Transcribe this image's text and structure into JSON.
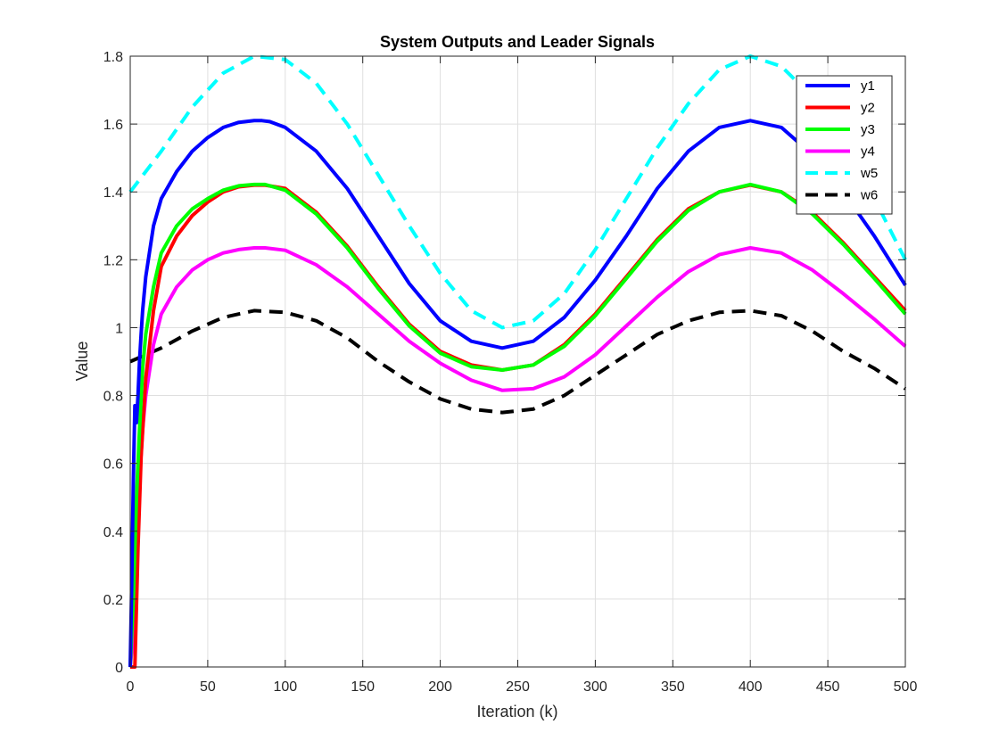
{
  "chart_data": {
    "type": "line",
    "title": "System Outputs and Leader Signals",
    "xlabel": "Iteration (k)",
    "ylabel": "Value",
    "xlim": [
      0,
      500
    ],
    "ylim": [
      0,
      1.8
    ],
    "xticks": [
      0,
      50,
      100,
      150,
      200,
      250,
      300,
      350,
      400,
      450,
      500
    ],
    "yticks": [
      0,
      0.2,
      0.4,
      0.6,
      0.8,
      1,
      1.2,
      1.4,
      1.6,
      1.8
    ],
    "xtick_labels": [
      "0",
      "50",
      "100",
      "150",
      "200",
      "250",
      "300",
      "350",
      "400",
      "450",
      "500"
    ],
    "ytick_labels": [
      "0",
      "0.2",
      "0.4",
      "0.6",
      "0.8",
      "1",
      "1.2",
      "1.4",
      "1.6",
      "1.8"
    ],
    "grid": true,
    "legend_position": "top-right",
    "series": [
      {
        "name": "y1",
        "color": "#0000ff",
        "style": "solid",
        "x": [
          0,
          1,
          2,
          3,
          4,
          5,
          6,
          7,
          8,
          10,
          15,
          20,
          30,
          40,
          50,
          60,
          70,
          80,
          85,
          90,
          100,
          120,
          140,
          160,
          180,
          200,
          220,
          240,
          260,
          280,
          300,
          320,
          340,
          360,
          380,
          400,
          420,
          440,
          460,
          480,
          500
        ],
        "y": [
          0,
          0.25,
          0.55,
          0.77,
          0.72,
          0.8,
          0.9,
          0.98,
          1.05,
          1.15,
          1.3,
          1.38,
          1.46,
          1.52,
          1.56,
          1.59,
          1.605,
          1.61,
          1.61,
          1.607,
          1.59,
          1.52,
          1.41,
          1.27,
          1.13,
          1.02,
          0.96,
          0.94,
          0.96,
          1.03,
          1.14,
          1.27,
          1.41,
          1.52,
          1.59,
          1.61,
          1.59,
          1.51,
          1.4,
          1.27,
          1.125
        ]
      },
      {
        "name": "y2",
        "color": "#ff0000",
        "style": "solid",
        "x": [
          0,
          3,
          5,
          7,
          10,
          15,
          20,
          30,
          40,
          50,
          60,
          70,
          80,
          87,
          100,
          120,
          140,
          160,
          180,
          200,
          220,
          240,
          260,
          280,
          300,
          320,
          340,
          360,
          380,
          400,
          420,
          440,
          460,
          480,
          500
        ],
        "y": [
          0,
          0.0,
          0.35,
          0.62,
          0.85,
          1.05,
          1.18,
          1.27,
          1.33,
          1.37,
          1.4,
          1.415,
          1.42,
          1.42,
          1.41,
          1.34,
          1.24,
          1.12,
          1.01,
          0.93,
          0.89,
          0.875,
          0.89,
          0.95,
          1.04,
          1.15,
          1.26,
          1.35,
          1.4,
          1.42,
          1.4,
          1.34,
          1.25,
          1.15,
          1.05
        ]
      },
      {
        "name": "y3",
        "color": "#00ff00",
        "style": "solid",
        "x": [
          0,
          2,
          4,
          6,
          8,
          10,
          15,
          20,
          30,
          40,
          50,
          60,
          70,
          80,
          87,
          100,
          120,
          140,
          160,
          180,
          200,
          220,
          240,
          260,
          280,
          300,
          320,
          340,
          360,
          380,
          400,
          420,
          440,
          460,
          480,
          500
        ],
        "y": [
          0,
          0.2,
          0.5,
          0.7,
          0.88,
          0.98,
          1.12,
          1.22,
          1.3,
          1.35,
          1.38,
          1.405,
          1.418,
          1.422,
          1.422,
          1.405,
          1.335,
          1.235,
          1.115,
          1.005,
          0.925,
          0.885,
          0.875,
          0.89,
          0.945,
          1.035,
          1.145,
          1.255,
          1.345,
          1.4,
          1.422,
          1.4,
          1.335,
          1.245,
          1.145,
          1.04
        ]
      },
      {
        "name": "y4",
        "color": "#ff00ff",
        "style": "solid",
        "x": [
          0,
          2,
          4,
          6,
          8,
          10,
          15,
          20,
          30,
          40,
          50,
          60,
          70,
          80,
          87,
          100,
          120,
          140,
          160,
          180,
          200,
          220,
          240,
          260,
          280,
          300,
          320,
          340,
          360,
          380,
          400,
          420,
          440,
          460,
          480,
          500
        ],
        "y": [
          0,
          0.1,
          0.35,
          0.55,
          0.7,
          0.8,
          0.95,
          1.04,
          1.12,
          1.17,
          1.2,
          1.22,
          1.23,
          1.235,
          1.235,
          1.228,
          1.185,
          1.12,
          1.04,
          0.96,
          0.895,
          0.845,
          0.815,
          0.82,
          0.855,
          0.92,
          1.005,
          1.09,
          1.165,
          1.215,
          1.235,
          1.22,
          1.17,
          1.1,
          1.025,
          0.945
        ]
      },
      {
        "name": "w5",
        "color": "#00ffff",
        "style": "dashed",
        "x": [
          0,
          20,
          40,
          60,
          80,
          100,
          120,
          140,
          160,
          180,
          200,
          220,
          240,
          260,
          280,
          300,
          320,
          340,
          360,
          380,
          400,
          420,
          440,
          460,
          480,
          500
        ],
        "y": [
          1.4,
          1.52,
          1.65,
          1.75,
          1.8,
          1.79,
          1.72,
          1.6,
          1.45,
          1.3,
          1.16,
          1.05,
          1.0,
          1.02,
          1.1,
          1.23,
          1.38,
          1.53,
          1.66,
          1.76,
          1.8,
          1.77,
          1.68,
          1.55,
          1.38,
          1.2
        ]
      },
      {
        "name": "w6",
        "color": "#000000",
        "style": "dashed",
        "x": [
          0,
          20,
          40,
          60,
          80,
          100,
          120,
          140,
          160,
          180,
          200,
          220,
          240,
          260,
          280,
          300,
          320,
          340,
          360,
          380,
          400,
          420,
          440,
          460,
          480,
          500
        ],
        "y": [
          0.9,
          0.94,
          0.99,
          1.03,
          1.05,
          1.045,
          1.02,
          0.97,
          0.9,
          0.84,
          0.79,
          0.76,
          0.75,
          0.76,
          0.8,
          0.86,
          0.92,
          0.98,
          1.02,
          1.045,
          1.05,
          1.035,
          0.99,
          0.93,
          0.88,
          0.82
        ]
      }
    ]
  }
}
